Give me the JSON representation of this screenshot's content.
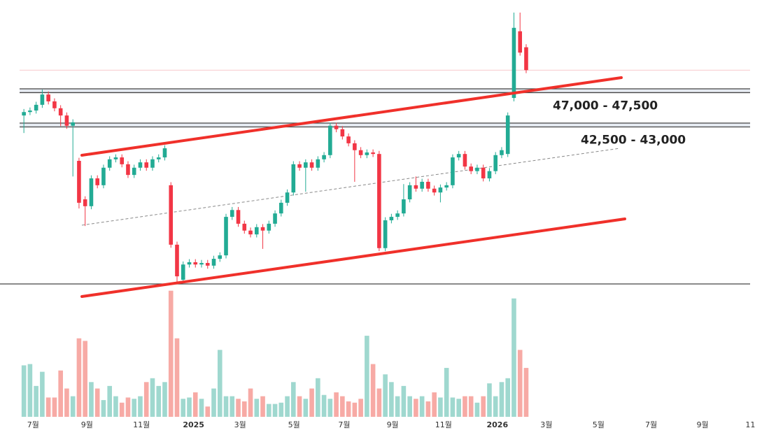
{
  "chart_data": {
    "type": "candlestick",
    "xlim": [
      -3.9,
      120.5
    ],
    "ylim": [
      21900,
      59150
    ],
    "vlim": [
      0,
      100
    ],
    "xticks": [
      {
        "value": 1.5,
        "label": "7월"
      },
      {
        "value": 10.3,
        "label": "9월"
      },
      {
        "value": 19.2,
        "label": "11월"
      },
      {
        "value": 27.7,
        "label": "2025"
      },
      {
        "value": 35.3,
        "label": "3월"
      },
      {
        "value": 44.1,
        "label": "5월"
      },
      {
        "value": 52.3,
        "label": "7월"
      },
      {
        "value": 60.2,
        "label": "9월"
      },
      {
        "value": 68.5,
        "label": "11월"
      },
      {
        "value": 77.3,
        "label": "2026"
      },
      {
        "value": 85.3,
        "label": "3월"
      },
      {
        "value": 93.8,
        "label": "5월"
      },
      {
        "value": 102.4,
        "label": "7월"
      },
      {
        "value": 110.8,
        "label": "9월"
      },
      {
        "value": 118.6,
        "label": "11"
      }
    ],
    "up_color": "#22ab94",
    "down_color": "#f23645",
    "up_volume_color": "#9fd8cf",
    "down_volume_color": "#f7aaa5",
    "zones": [
      {
        "label": "47,000 - 47,500",
        "low": 47000,
        "high": 47500
      },
      {
        "label": "42,500 - 43,000",
        "low": 42500,
        "high": 43000
      }
    ],
    "open": [
      44000,
      44450,
      44650,
      45400,
      46750,
      45850,
      44950,
      44000,
      42650,
      38050,
      33000,
      32100,
      35750,
      34850,
      37150,
      38250,
      38500,
      37600,
      36200,
      37150,
      37850,
      37150,
      38250,
      38500,
      34850,
      27050,
      22450,
      24450,
      24750,
      24450,
      24650,
      24300,
      25200,
      25650,
      30700,
      31600,
      29800,
      28900,
      28400,
      29350,
      28900,
      29800,
      31150,
      32550,
      33900,
      37600,
      37150,
      37850,
      37150,
      38250,
      38800,
      42650,
      42200,
      41250,
      40350,
      39450,
      38800,
      39150,
      38950,
      26600,
      30250,
      30700,
      31150,
      33000,
      34850,
      34400,
      35300,
      34400,
      33900,
      34550,
      34850,
      38500,
      38950,
      37300,
      36700,
      37150,
      35750,
      36700,
      38800,
      38950,
      46300,
      55050,
      52950
    ],
    "high": [
      44850,
      45050,
      45800,
      47400,
      47150,
      46250,
      45350,
      44400,
      43500,
      38450,
      33400,
      36150,
      36150,
      37550,
      38650,
      38900,
      38900,
      38000,
      37550,
      38250,
      38250,
      38650,
      38900,
      40100,
      35250,
      27450,
      24850,
      25150,
      25150,
      25050,
      25050,
      25600,
      26050,
      31100,
      32000,
      32000,
      30200,
      29300,
      29750,
      29750,
      30200,
      31550,
      32950,
      34300,
      38000,
      38000,
      38250,
      38250,
      38650,
      39200,
      43050,
      43050,
      42600,
      41650,
      40750,
      39850,
      39550,
      39550,
      39350,
      30650,
      31100,
      31550,
      35000,
      35250,
      36000,
      35700,
      35700,
      34800,
      34950,
      35250,
      38900,
      39350,
      39350,
      37700,
      37550,
      37550,
      37100,
      39200,
      39850,
      44400,
      57500,
      57500,
      53350
    ],
    "low": [
      41700,
      44050,
      44250,
      45000,
      45450,
      44550,
      42600,
      42250,
      36000,
      31800,
      29500,
      31700,
      34450,
      34450,
      36750,
      37850,
      37200,
      35800,
      35800,
      36750,
      36750,
      36750,
      37850,
      38100,
      26650,
      22050,
      22050,
      24050,
      24050,
      24050,
      23900,
      23900,
      24800,
      25250,
      30300,
      29400,
      28500,
      28000,
      28000,
      26500,
      28500,
      29400,
      30750,
      32150,
      33500,
      36750,
      34000,
      36750,
      36750,
      37850,
      38400,
      41800,
      40850,
      39950,
      35300,
      38400,
      38400,
      38550,
      26200,
      26200,
      29850,
      30300,
      30750,
      32600,
      34000,
      34000,
      34000,
      33500,
      32600,
      34150,
      34450,
      38100,
      36900,
      36300,
      36300,
      35350,
      35350,
      36300,
      38400,
      38550,
      45850,
      51850,
      49550
    ],
    "close": [
      44450,
      44650,
      45400,
      46750,
      45850,
      44950,
      44000,
      42650,
      43100,
      32550,
      32100,
      35750,
      34850,
      37150,
      38250,
      38500,
      37600,
      36200,
      37150,
      37850,
      37150,
      38250,
      38500,
      39700,
      27050,
      22900,
      24450,
      24750,
      24450,
      24650,
      24300,
      25200,
      25650,
      30700,
      31600,
      29800,
      28900,
      28400,
      29350,
      28900,
      29800,
      31150,
      32550,
      33900,
      37600,
      37150,
      37850,
      37150,
      38250,
      38800,
      42650,
      42200,
      41250,
      40350,
      39450,
      38800,
      39150,
      38950,
      26600,
      30250,
      30700,
      31150,
      33000,
      34850,
      34400,
      35300,
      34400,
      33900,
      34550,
      34850,
      38500,
      38950,
      37300,
      36700,
      37150,
      35750,
      36700,
      38800,
      39450,
      44000,
      55500,
      52250,
      49950
    ],
    "volume": [
      40,
      41,
      24,
      35,
      15,
      15,
      36,
      22,
      16,
      61,
      59,
      27,
      22,
      13,
      24,
      16,
      11,
      15,
      14,
      16,
      27,
      30,
      24,
      27,
      98,
      61,
      14,
      15,
      19,
      14,
      8,
      22,
      52,
      16,
      16,
      14,
      12,
      22,
      14,
      16,
      10,
      10,
      11,
      16,
      27,
      16,
      14,
      22,
      30,
      17,
      14,
      19,
      16,
      12,
      11,
      14,
      63,
      41,
      22,
      33,
      27,
      16,
      24,
      16,
      14,
      16,
      12,
      19,
      15,
      38,
      15,
      14,
      16,
      16,
      11,
      16,
      26,
      16,
      27,
      30,
      92,
      52,
      38
    ]
  }
}
